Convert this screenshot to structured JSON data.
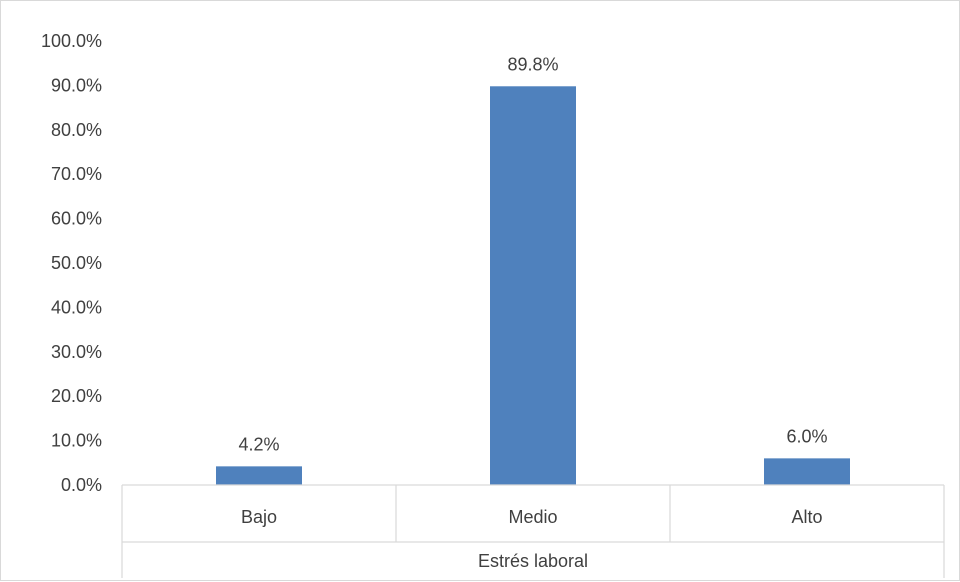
{
  "chart_data": {
    "type": "bar",
    "categories": [
      "Bajo",
      "Medio",
      "Alto"
    ],
    "values": [
      4.2,
      89.8,
      6.0
    ],
    "data_labels": [
      "4.2%",
      "89.8%",
      "6.0%"
    ],
    "title": "",
    "xlabel": "Estrés laboral",
    "ylabel": "",
    "ylim": [
      0,
      100
    ],
    "y_ticks": [
      0,
      10,
      20,
      30,
      40,
      50,
      60,
      70,
      80,
      90,
      100
    ],
    "y_tick_labels": [
      "0.0%",
      "10.0%",
      "20.0%",
      "30.0%",
      "40.0%",
      "50.0%",
      "60.0%",
      "70.0%",
      "80.0%",
      "90.0%",
      "100.0%"
    ],
    "grid": false,
    "legend": "none",
    "bar_color": "#4f81bd",
    "axis_color": "#d9d9d9",
    "text_color": "#404040"
  }
}
